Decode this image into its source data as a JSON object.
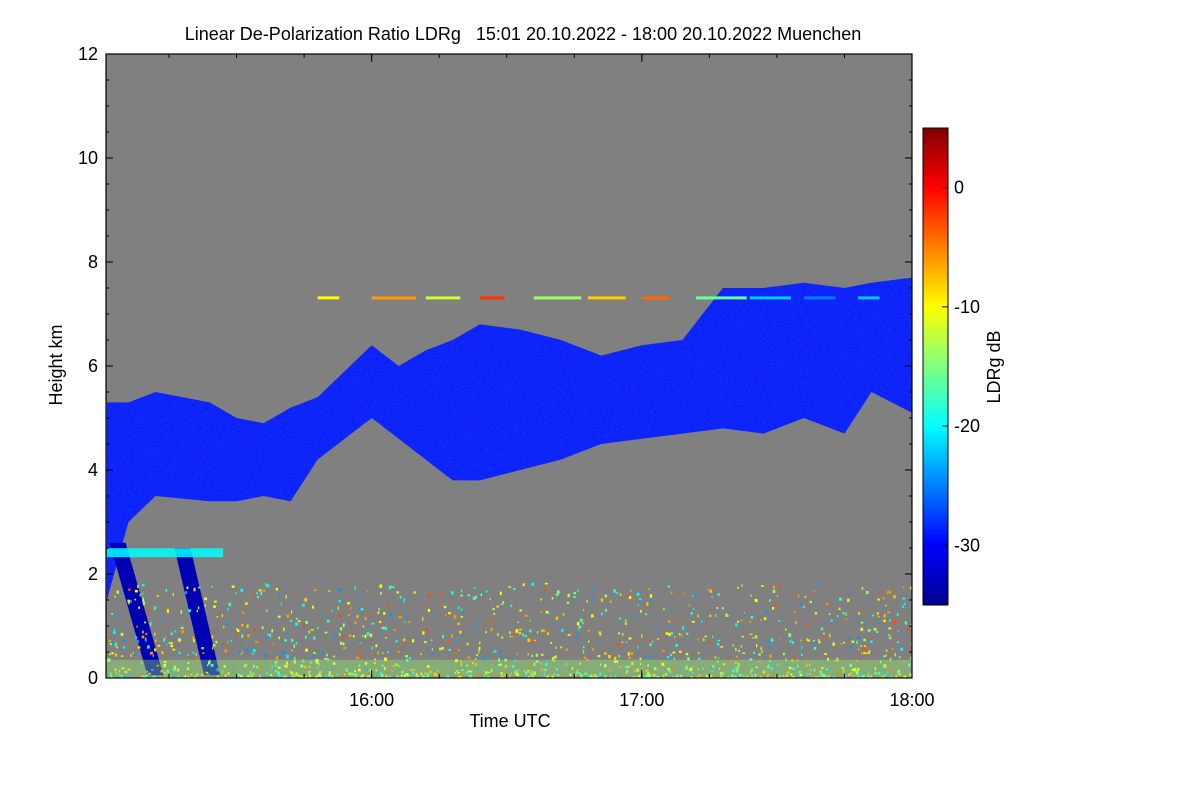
{
  "chart_data": {
    "type": "heatmap",
    "title": "Linear De-Polarization Ratio LDRg   15:01 20.10.2022 - 18:00 20.10.2022 Muenchen",
    "xlabel": "Time UTC",
    "ylabel": "Height km",
    "x_range": [
      "15:01",
      "18:00"
    ],
    "xlim_hours": [
      15.0167,
      18.0
    ],
    "ylim": [
      0,
      12
    ],
    "x_ticks": [
      {
        "label": "16:00",
        "value": 16.0
      },
      {
        "label": "17:00",
        "value": 17.0
      },
      {
        "label": "18:00",
        "value": 18.0
      }
    ],
    "y_ticks": [
      {
        "label": "0",
        "value": 0
      },
      {
        "label": "2",
        "value": 2
      },
      {
        "label": "4",
        "value": 4
      },
      {
        "label": "6",
        "value": 6
      },
      {
        "label": "8",
        "value": 8
      },
      {
        "label": "10",
        "value": 10
      },
      {
        "label": "12",
        "value": 12
      }
    ],
    "colorbar": {
      "label": "LDRg dB",
      "range": [
        -35,
        5
      ],
      "colormap": "jet",
      "ticks": [
        {
          "label": "0",
          "value": 0
        },
        {
          "label": "-10",
          "value": -10
        },
        {
          "label": "-20",
          "value": -20
        },
        {
          "label": "-30",
          "value": -30
        }
      ]
    },
    "background_color": "#808080",
    "cloud_layer": {
      "ldr_db": -29,
      "top_km": [
        [
          15.02,
          5.3
        ],
        [
          15.1,
          5.3
        ],
        [
          15.2,
          5.5
        ],
        [
          15.4,
          5.3
        ],
        [
          15.5,
          5.0
        ],
        [
          15.6,
          4.9
        ],
        [
          15.7,
          5.2
        ],
        [
          15.8,
          5.4
        ],
        [
          16.0,
          6.4
        ],
        [
          16.1,
          6.0
        ],
        [
          16.2,
          6.3
        ],
        [
          16.3,
          6.5
        ],
        [
          16.4,
          6.8
        ],
        [
          16.55,
          6.7
        ],
        [
          16.7,
          6.5
        ],
        [
          16.85,
          6.2
        ],
        [
          17.0,
          6.4
        ],
        [
          17.15,
          6.5
        ],
        [
          17.3,
          7.5
        ],
        [
          17.45,
          7.5
        ],
        [
          17.6,
          7.6
        ],
        [
          17.75,
          7.5
        ],
        [
          17.85,
          7.6
        ],
        [
          18.0,
          7.7
        ]
      ],
      "base_km": [
        [
          15.02,
          1.5
        ],
        [
          15.1,
          3.0
        ],
        [
          15.2,
          3.5
        ],
        [
          15.4,
          3.4
        ],
        [
          15.5,
          3.4
        ],
        [
          15.6,
          3.5
        ],
        [
          15.7,
          3.4
        ],
        [
          15.8,
          4.2
        ],
        [
          16.0,
          5.0
        ],
        [
          16.1,
          4.6
        ],
        [
          16.2,
          4.2
        ],
        [
          16.3,
          3.8
        ],
        [
          16.4,
          3.8
        ],
        [
          16.55,
          4.0
        ],
        [
          16.7,
          4.2
        ],
        [
          16.85,
          4.5
        ],
        [
          17.0,
          4.6
        ],
        [
          17.15,
          4.7
        ],
        [
          17.3,
          4.8
        ],
        [
          17.45,
          4.7
        ],
        [
          17.6,
          5.0
        ],
        [
          17.75,
          4.7
        ],
        [
          17.85,
          5.5
        ],
        [
          18.0,
          5.1
        ]
      ]
    },
    "fall_streaks": {
      "ldr_db": -33,
      "streaks": [
        {
          "t_top": 15.03,
          "t_bottom": 15.17,
          "top_km": 2.6,
          "base_km": 0.05
        },
        {
          "t_top": 15.27,
          "t_bottom": 15.38,
          "top_km": 2.5,
          "base_km": 0.05
        }
      ]
    },
    "bright_band": {
      "height_km": 2.4,
      "ldr_db": -20,
      "t_start": 15.02,
      "t_end": 15.45
    },
    "thin_line_7km": {
      "height_km": 7.3,
      "ldr_db": -10,
      "t_start": 15.8,
      "t_end": 18.0
    },
    "aerosol_layer": {
      "height_km_max": 1.8,
      "ldr_db_typical": -12,
      "t_start": 15.02,
      "t_end": 18.0
    }
  }
}
